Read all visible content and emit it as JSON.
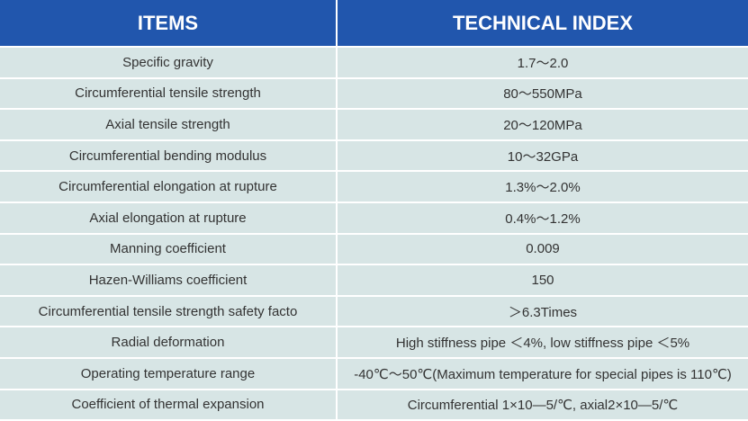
{
  "table": {
    "headers": [
      "ITEMS",
      "TECHNICAL INDEX"
    ],
    "rows": [
      [
        "Specific gravity",
        "1.7～2.0"
      ],
      [
        "Circumferential tensile strength",
        "80～550MPa"
      ],
      [
        "Axial tensile strength",
        "20～120MPa"
      ],
      [
        "Circumferential bending modulus",
        "10～32GPa"
      ],
      [
        "Circumferential elongation at rupture",
        "1.3%～2.0%"
      ],
      [
        "Axial elongation at rupture",
        "0.4%～1.2%"
      ],
      [
        "Manning coefficient",
        "0.009"
      ],
      [
        "Hazen-Williams coefficient",
        "150"
      ],
      [
        "Circumferential tensile strength safety facto",
        "＞6.3Times"
      ],
      [
        "Radial deformation",
        "High stiffness pipe ＜4%, low stiffness pipe ＜5%"
      ],
      [
        "Operating temperature range",
        "-40℃～50℃(Maximum temperature for special pipes is 110℃)"
      ],
      [
        "Coefficient of thermal expansion",
        "Circumferential 1×10—5/℃, axial2×10—5/℃"
      ]
    ]
  },
  "colors": {
    "header_bg": "#2156ad",
    "row_bg": "#d7e5e5"
  }
}
